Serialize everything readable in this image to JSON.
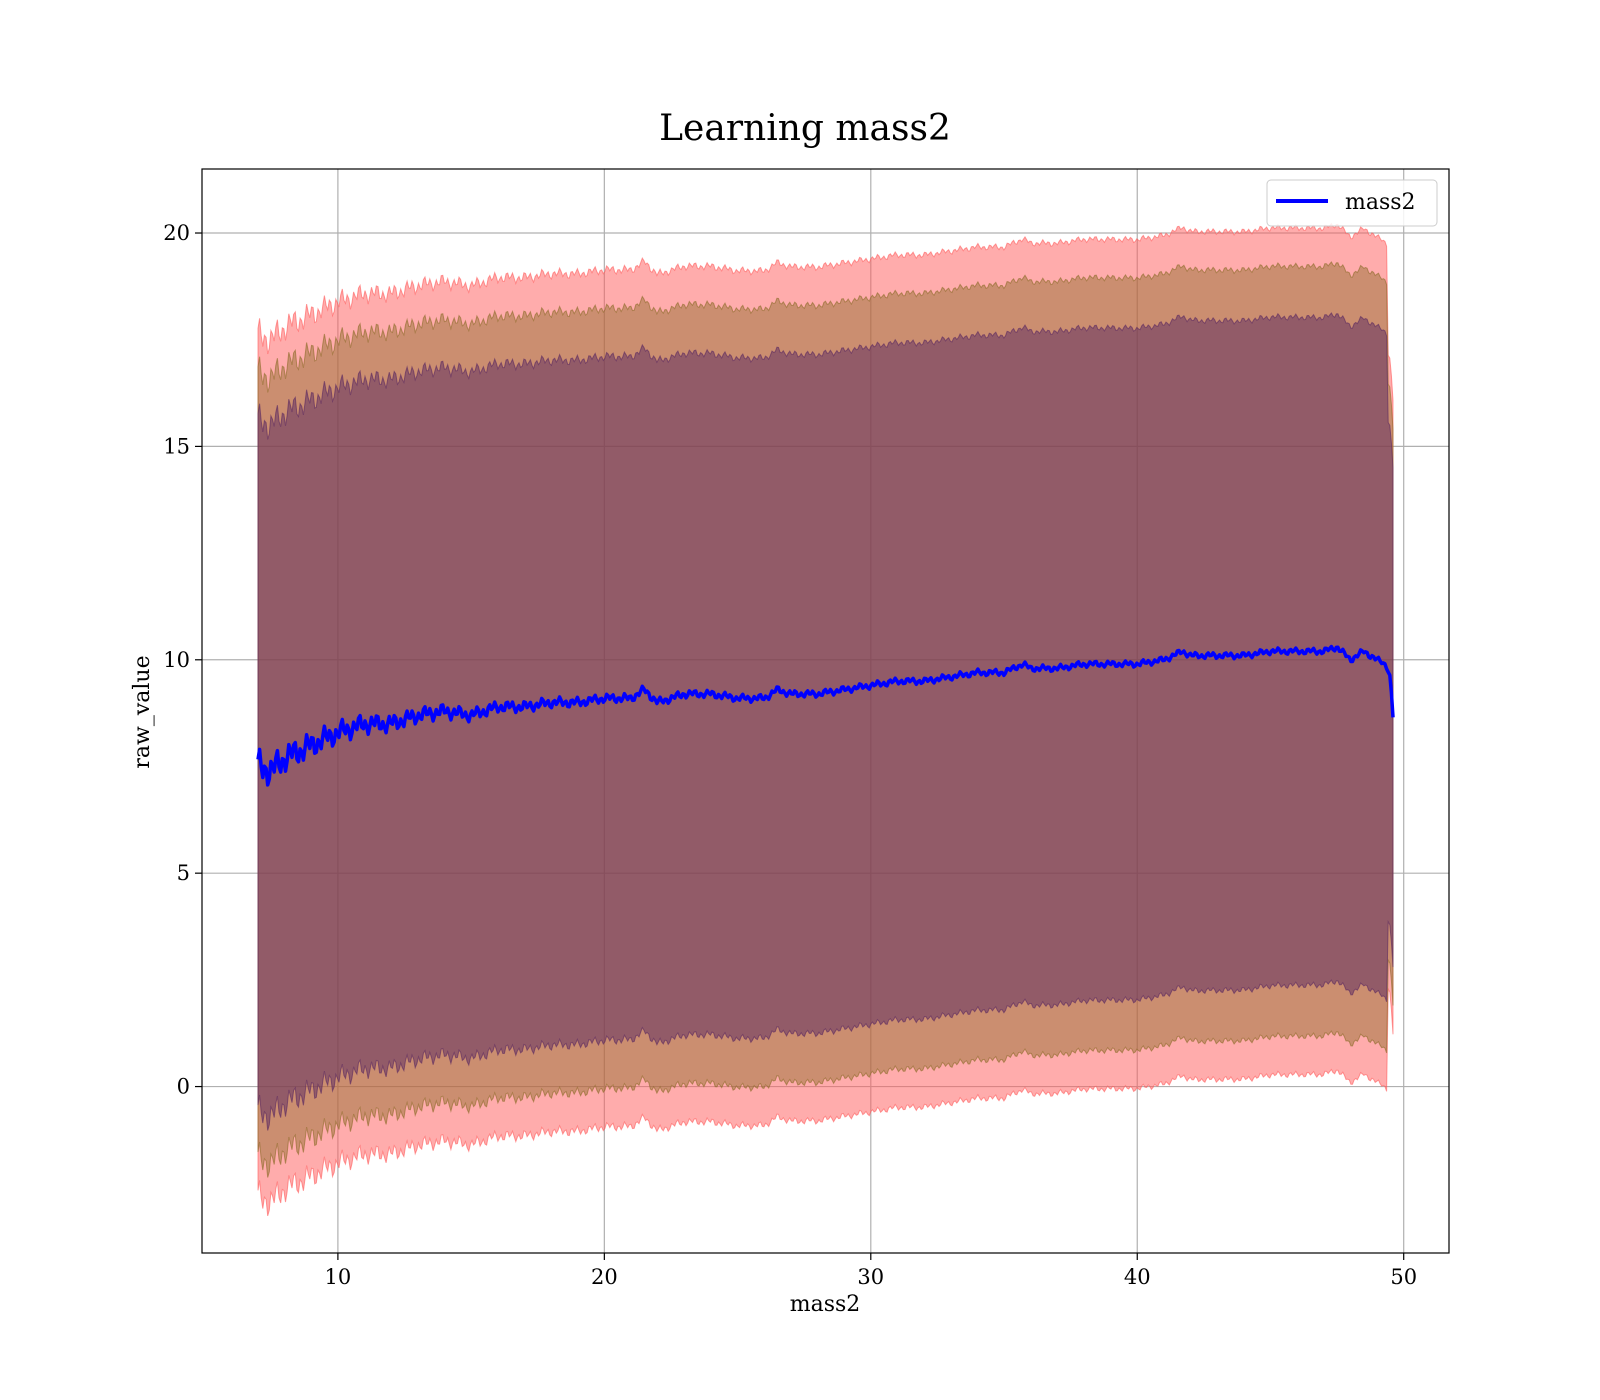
{
  "chart_data": {
    "type": "line",
    "title": "Learning mass2",
    "xlabel": "mass2",
    "ylabel": "raw_value",
    "xlim": [
      4.9,
      51.7
    ],
    "ylim": [
      -3.9,
      21.5
    ],
    "xticks": [
      10,
      20,
      30,
      40,
      50
    ],
    "yticks": [
      0,
      5,
      10,
      15,
      20
    ],
    "grid": true,
    "legend_position": "top-right",
    "x_range": [
      7.0,
      49.6
    ],
    "series": [
      {
        "name": "mass2",
        "color": "#0000ff",
        "x": [
          7.0,
          7.5,
          8.0,
          9.0,
          10.0,
          11.0,
          12.0,
          13.0,
          14.0,
          15.0,
          16.0,
          17.0,
          18.0,
          19.0,
          20.0,
          21.0,
          21.5,
          22.0,
          23.0,
          24.0,
          25.0,
          26.0,
          26.5,
          27.0,
          28.0,
          29.0,
          30.0,
          31.0,
          32.0,
          33.0,
          34.0,
          35.0,
          35.7,
          36.0,
          37.0,
          38.0,
          39.0,
          40.0,
          41.0,
          41.7,
          42.0,
          43.0,
          44.0,
          45.0,
          46.0,
          47.0,
          47.5,
          48.0,
          48.5,
          49.0,
          49.3,
          49.5,
          49.6
        ],
        "y": [
          7.5,
          7.4,
          7.7,
          8.0,
          8.3,
          8.5,
          8.5,
          8.7,
          8.8,
          8.7,
          8.9,
          8.9,
          9.0,
          9.0,
          9.1,
          9.1,
          9.3,
          9.0,
          9.2,
          9.2,
          9.1,
          9.1,
          9.3,
          9.2,
          9.2,
          9.3,
          9.4,
          9.5,
          9.5,
          9.6,
          9.7,
          9.7,
          9.9,
          9.8,
          9.8,
          9.9,
          9.9,
          9.9,
          10.0,
          10.2,
          10.1,
          10.1,
          10.1,
          10.2,
          10.2,
          10.2,
          10.3,
          10.0,
          10.2,
          10.0,
          9.9,
          9.6,
          8.65
        ]
      }
    ],
    "bands": [
      {
        "color": "#ff5a5a",
        "width": 10.1,
        "end_width": 9.9,
        "opacity": 0.5
      },
      {
        "color": "#8c6a28",
        "width": 9.2,
        "end_width": 9.0,
        "opacity": 0.45
      },
      {
        "color": "#5a2860",
        "width": 8.1,
        "end_width": 7.8,
        "opacity": 0.5
      }
    ]
  }
}
